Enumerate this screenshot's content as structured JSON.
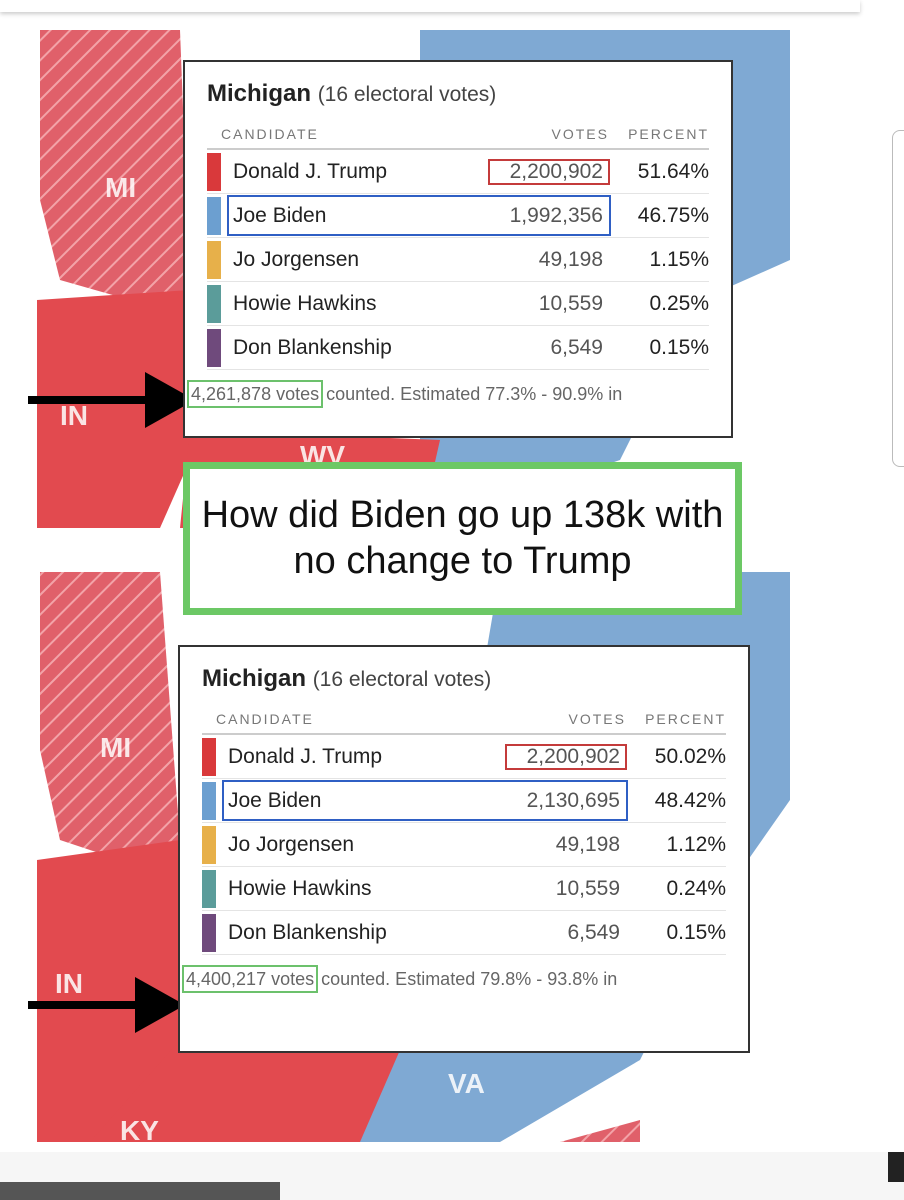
{
  "top_panel": {
    "title": "Michigan",
    "subtitle": "(16 electoral votes)",
    "columns": [
      "CANDIDATE",
      "VOTES",
      "PERCENT"
    ],
    "rows": [
      [
        "Donald J. Trump",
        "2,200,902",
        "51.64%"
      ],
      [
        "Joe Biden",
        "1,992,356",
        "46.75%"
      ],
      [
        "Jo Jorgensen",
        "49,198",
        "1.15%"
      ],
      [
        "Howie Hawkins",
        "10,559",
        "0.25%"
      ],
      [
        "Don Blankenship",
        "6,549",
        "0.15%"
      ]
    ],
    "footer": {
      "votes": "4,261,878 votes",
      "rest": "counted. Estimated 77.3% - 90.9% in"
    }
  },
  "caption": "How did Biden go up 138k with no change to Trump",
  "bottom_panel": {
    "title": "Michigan",
    "subtitle": "(16 electoral votes)",
    "columns": [
      "CANDIDATE",
      "VOTES",
      "PERCENT"
    ],
    "rows": [
      [
        "Donald J. Trump",
        "2,200,902",
        "50.02%"
      ],
      [
        "Joe Biden",
        "2,130,695",
        "48.42%"
      ],
      [
        "Jo Jorgensen",
        "49,198",
        "1.12%"
      ],
      [
        "Howie Hawkins",
        "10,559",
        "0.24%"
      ],
      [
        "Don Blankenship",
        "6,549",
        "0.15%"
      ]
    ],
    "footer": {
      "votes": "4,400,217 votes",
      "rest": "counted. Estimated 79.8% - 93.8% in"
    }
  },
  "map_labels": {
    "top": [
      "MI",
      "IN",
      "WV"
    ],
    "bottom": [
      "MI",
      "IN",
      "VA",
      "KY"
    ]
  }
}
